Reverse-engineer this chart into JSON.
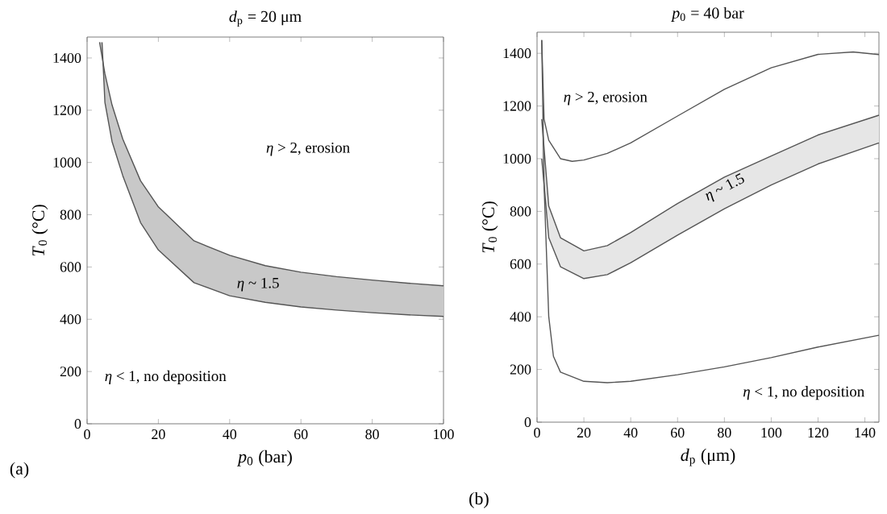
{
  "chart_data": [
    {
      "type": "line",
      "title": "*d*$_{p}$ = 20 μm",
      "xlabel": "*p*$_{0}$ (bar)",
      "ylabel": "*T*$_{0}$ (°C)",
      "xlim": [
        0,
        100
      ],
      "ylim": [
        0,
        1480
      ],
      "xticks": [
        0,
        20,
        40,
        60,
        80,
        100
      ],
      "yticks": [
        0,
        200,
        400,
        600,
        800,
        1000,
        1200,
        1400
      ],
      "series": [
        {
          "type": "area",
          "color": "#c8c8c8",
          "x": [
            3.5,
            5,
            7,
            10,
            15,
            20,
            30,
            40,
            50,
            60,
            70,
            80,
            90,
            100
          ],
          "values": [
            1460,
            1340,
            1220,
            1090,
            930,
            830,
            700,
            645,
            605,
            580,
            563,
            550,
            538,
            528
          ]
        },
        {
          "color": "#555555",
          "x": [
            4.2,
            5,
            7,
            10,
            15,
            20,
            30,
            40,
            50,
            60,
            70,
            80,
            90,
            100
          ],
          "values": [
            1460,
            1230,
            1080,
            950,
            770,
            665,
            540,
            490,
            465,
            447,
            435,
            425,
            417,
            411
          ]
        }
      ],
      "annotations": [
        "*η* > 2, erosion",
        "*η* ~ 1.5",
        "*η* < 1, no deposition",
        "(a)"
      ]
    },
    {
      "type": "line",
      "title": "*p*$_{0}$ = 40 bar",
      "xlabel": "*d*$_{p}$ (μm)",
      "ylabel": "*T*$_{0}$ (°C)",
      "xlim": [
        0,
        146
      ],
      "ylim": [
        0,
        1480
      ],
      "xticks": [
        0,
        20,
        40,
        60,
        80,
        100,
        120,
        140
      ],
      "yticks": [
        0,
        200,
        400,
        600,
        800,
        1000,
        1200,
        1400
      ],
      "series": [
        {
          "color": "#555555",
          "x": [
            2,
            3,
            5,
            10,
            15,
            20,
            30,
            40,
            60,
            80,
            100,
            120,
            135,
            146
          ],
          "values": [
            1450,
            1150,
            1070,
            1000,
            990,
            995,
            1020,
            1060,
            1162,
            1263,
            1345,
            1396,
            1405,
            1395
          ]
        },
        {
          "type": "area",
          "color": "#e6e6e6",
          "x": [
            2,
            5,
            10,
            20,
            30,
            40,
            60,
            80,
            100,
            120,
            146
          ],
          "values": [
            1150,
            820,
            700,
            650,
            670,
            720,
            830,
            930,
            1010,
            1090,
            1165
          ]
        },
        {
          "color": "#555555",
          "x": [
            2,
            5,
            10,
            20,
            30,
            40,
            60,
            80,
            100,
            120,
            146
          ],
          "values": [
            1000,
            700,
            590,
            545,
            560,
            605,
            710,
            810,
            900,
            980,
            1060
          ]
        },
        {
          "color": "#555555",
          "x": [
            2,
            3,
            5,
            7,
            10,
            20,
            30,
            40,
            60,
            80,
            100,
            120,
            146
          ],
          "values": [
            1450,
            900,
            400,
            250,
            190,
            155,
            150,
            155,
            180,
            210,
            245,
            285,
            330
          ]
        }
      ],
      "annotations": [
        "*η* > 2, erosion",
        "*η* ~ 1.5",
        "*η* < 1, no deposition",
        "(b)"
      ]
    }
  ]
}
